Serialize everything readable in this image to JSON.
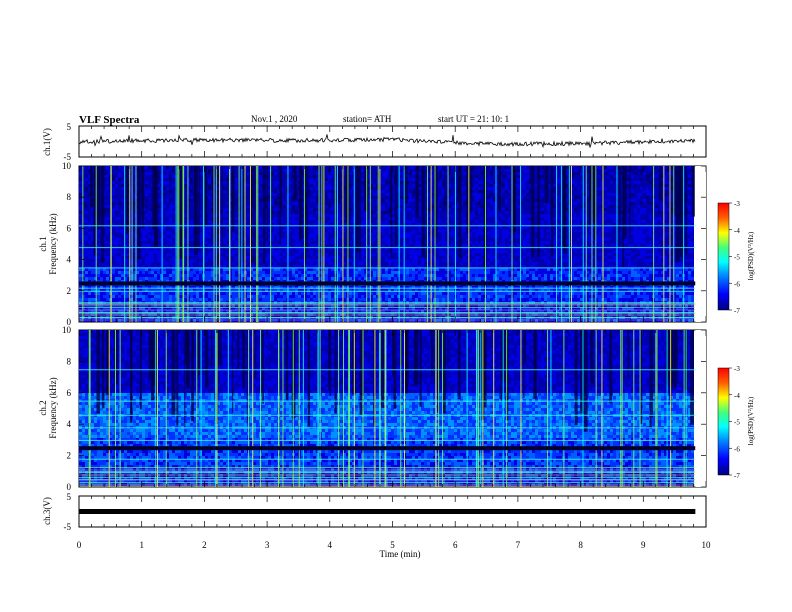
{
  "header": {
    "title": "VLF Spectra",
    "date": "Nov.1  , 2020",
    "station": "station= ATH",
    "start": "start  UT  =   21: 10: 1"
  },
  "chart_data": [
    {
      "type": "line",
      "ylabel": "ch.1(V)",
      "ylim": [
        -5,
        5
      ],
      "yticks": [
        "5",
        "-5"
      ],
      "description_level_V": 0,
      "xlim": [
        0,
        10
      ]
    },
    {
      "type": "heatmap",
      "ylabel": "ch.1\nFrequency  (kHz)",
      "ylim": [
        0,
        10
      ],
      "yticks": [
        "0",
        "2",
        "4",
        "6",
        "8",
        "10"
      ],
      "xlim": [
        0,
        10
      ],
      "data_end_min": 9.83,
      "colorbar": {
        "label": "log(PSD)(V²/Hz)",
        "range": [
          -7,
          -3
        ],
        "ticks": [
          "-3",
          "-4",
          "-5",
          "-6",
          "-7"
        ]
      }
    },
    {
      "type": "heatmap",
      "ylabel": "ch.2\nFrequency  (kHz)",
      "ylim": [
        0,
        10
      ],
      "yticks": [
        "0",
        "2",
        "4",
        "6",
        "8",
        "10"
      ],
      "xlim": [
        0,
        10
      ],
      "data_end_min": 9.83,
      "colorbar": {
        "label": "log(PSD)(V²/Hz)",
        "range": [
          -7,
          -3
        ],
        "ticks": [
          "-3",
          "-4",
          "-5",
          "-6",
          "-7"
        ]
      }
    },
    {
      "type": "line",
      "ylabel": "ch.3(V)",
      "ylim": [
        -5,
        5
      ],
      "yticks": [
        "5",
        "-5"
      ],
      "level_V": 0,
      "xlim": [
        0,
        10
      ],
      "xlabel": "Time  (min)",
      "xticks": [
        "0",
        "1",
        "2",
        "3",
        "4",
        "5",
        "6",
        "7",
        "8",
        "9",
        "10"
      ]
    }
  ],
  "colors": {
    "colormap": [
      "#000000",
      "#00007f",
      "#0000ff",
      "#0080ff",
      "#00ffff",
      "#80ff80",
      "#ffff00",
      "#ff8000",
      "#ff0000",
      "#ffffff"
    ]
  }
}
